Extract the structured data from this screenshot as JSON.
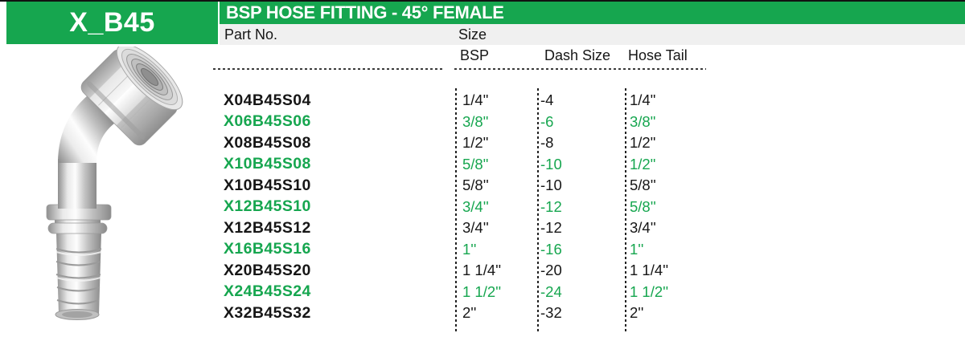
{
  "colors": {
    "accent_green": "#16a64f",
    "header_bar_gray": "#f0f0f0",
    "text_dark": "#161616",
    "top_rule_black": "#111111"
  },
  "header": {
    "model_code": "X_B45",
    "title": "BSP HOSE FITTING - 45° FEMALE"
  },
  "table": {
    "part_no_header": "Part No.",
    "size_header": "Size",
    "sub_headers": [
      "BSP",
      "Dash Size",
      "Hose Tail"
    ],
    "rows": [
      {
        "part": "X04B45S04",
        "bsp": "1/4\"",
        "dash": "-4",
        "hose": "1/4\"",
        "green": false
      },
      {
        "part": "X06B45S06",
        "bsp": "3/8\"",
        "dash": "-6",
        "hose": "3/8\"",
        "green": true
      },
      {
        "part": "X08B45S08",
        "bsp": "1/2\"",
        "dash": "-8",
        "hose": "1/2\"",
        "green": false
      },
      {
        "part": "X10B45S08",
        "bsp": "5/8\"",
        "dash": "-10",
        "hose": "1/2\"",
        "green": true
      },
      {
        "part": "X10B45S10",
        "bsp": "5/8''",
        "dash": "-10",
        "hose": "5/8''",
        "green": false
      },
      {
        "part": "X12B45S10",
        "bsp": "3/4''",
        "dash": "-12",
        "hose": "5/8''",
        "green": true
      },
      {
        "part": "X12B45S12",
        "bsp": "3/4''",
        "dash": "-12",
        "hose": "3/4''",
        "green": false
      },
      {
        "part": "X16B45S16",
        "bsp": "1''",
        "dash": "-16",
        "hose": "1''",
        "green": true
      },
      {
        "part": "X20B45S20",
        "bsp": "1 1/4''",
        "dash": "-20",
        "hose": "1 1/4''",
        "green": false
      },
      {
        "part": "X24B45S24",
        "bsp": "1 1/2''",
        "dash": "-24",
        "hose": "1 1/2''",
        "green": true
      },
      {
        "part": "X32B45S32",
        "bsp": "2''",
        "dash": "-32",
        "hose": "2''",
        "green": false
      }
    ]
  },
  "product_image": {
    "icon": "45-degree-female-hose-fitting-photo"
  }
}
